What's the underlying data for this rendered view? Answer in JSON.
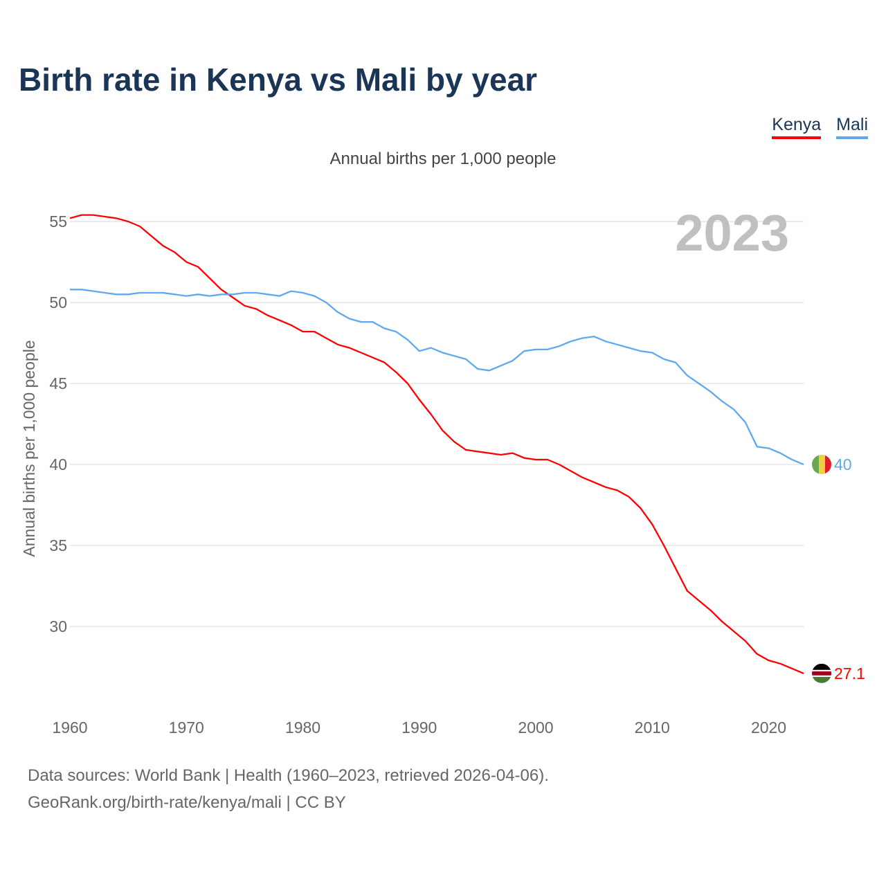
{
  "chart_data": {
    "type": "line",
    "title": "Birth rate in Kenya vs Mali by year",
    "subtitle": "Annual births per 1,000 people",
    "ylabel": "Annual births per 1,000 people",
    "xlabel": "",
    "year_label": "2023",
    "xlim": [
      1960,
      2023
    ],
    "ylim": [
      25.5,
      56.5
    ],
    "x_ticks": [
      1960,
      1970,
      1980,
      1990,
      2000,
      2010,
      2020
    ],
    "y_ticks": [
      30,
      35,
      40,
      45,
      50,
      55
    ],
    "grid": true,
    "legend_position": "top-right",
    "x_start": 1960,
    "series": [
      {
        "name": "Kenya",
        "color": "#ff0000",
        "end_label": "27.1",
        "flag": "kenya-flag",
        "values": [
          55.2,
          55.4,
          55.4,
          55.3,
          55.2,
          55.0,
          54.7,
          54.1,
          53.5,
          53.1,
          52.5,
          52.2,
          51.5,
          50.8,
          50.3,
          49.8,
          49.6,
          49.2,
          48.9,
          48.6,
          48.2,
          48.2,
          47.8,
          47.4,
          47.2,
          46.9,
          46.6,
          46.3,
          45.7,
          45.0,
          44.0,
          43.1,
          42.1,
          41.4,
          40.9,
          40.8,
          40.7,
          40.6,
          40.7,
          40.4,
          40.3,
          40.3,
          40.0,
          39.6,
          39.2,
          38.9,
          38.6,
          38.4,
          38.0,
          37.3,
          36.3,
          35.0,
          33.6,
          32.2,
          31.6,
          31.0,
          30.3,
          29.7,
          29.1,
          28.3,
          27.9,
          27.7,
          27.4,
          27.1
        ]
      },
      {
        "name": "Mali",
        "color": "#5ea8ef",
        "end_label": "40",
        "flag": "mali-flag",
        "values": [
          50.8,
          50.8,
          50.7,
          50.6,
          50.5,
          50.5,
          50.6,
          50.6,
          50.6,
          50.5,
          50.4,
          50.5,
          50.4,
          50.5,
          50.5,
          50.6,
          50.6,
          50.5,
          50.4,
          50.7,
          50.6,
          50.4,
          50.0,
          49.4,
          49.0,
          48.8,
          48.8,
          48.4,
          48.2,
          47.7,
          47.0,
          47.2,
          46.9,
          46.7,
          46.5,
          45.9,
          45.8,
          46.1,
          46.4,
          47.0,
          47.1,
          47.1,
          47.3,
          47.6,
          47.8,
          47.9,
          47.6,
          47.4,
          47.2,
          47.0,
          46.9,
          46.5,
          46.3,
          45.5,
          45.0,
          44.5,
          43.9,
          43.4,
          42.6,
          41.1,
          41.0,
          40.7,
          40.3,
          40.0
        ]
      }
    ]
  },
  "footer": {
    "line1": "Data sources: World Bank | Health (1960–2023, retrieved 2026-04-06).",
    "line2": "GeoRank.org/birth-rate/kenya/mali | CC BY"
  }
}
